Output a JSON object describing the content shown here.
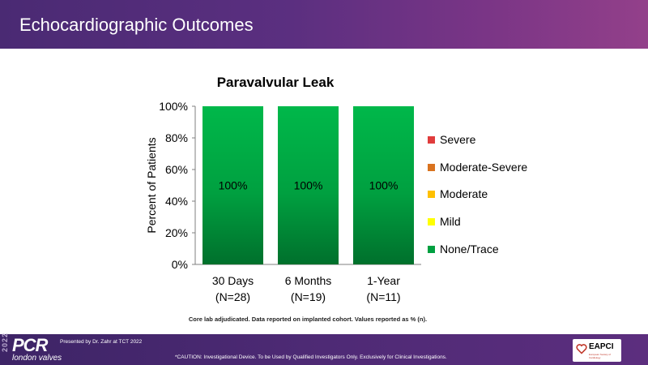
{
  "header": {
    "title": "Echocardiographic Outcomes"
  },
  "chart_data": {
    "type": "bar",
    "stacked": true,
    "title": "Paravalvular Leak",
    "ylabel": "Percent of Patients",
    "ylim": [
      0,
      100
    ],
    "yticks": [
      "0%",
      "20%",
      "40%",
      "60%",
      "80%",
      "100%"
    ],
    "categories": [
      {
        "line1": "30 Days",
        "line2": "(N=28)"
      },
      {
        "line1": "6 Months",
        "line2": "(N=19)"
      },
      {
        "line1": "1-Year",
        "line2": "(N=11)"
      }
    ],
    "series": [
      {
        "name": "None/Trace",
        "color": "#00a040",
        "values": [
          100,
          100,
          100
        ],
        "labels": [
          "100%",
          "100%",
          "100%"
        ]
      },
      {
        "name": "Mild",
        "color": "#ffff00",
        "values": [
          0,
          0,
          0
        ]
      },
      {
        "name": "Moderate",
        "color": "#ffc000",
        "values": [
          0,
          0,
          0
        ]
      },
      {
        "name": "Moderate-Severe",
        "color": "#d9731f",
        "values": [
          0,
          0,
          0
        ]
      },
      {
        "name": "Severe",
        "color": "#e03c3c",
        "values": [
          0,
          0,
          0
        ]
      }
    ],
    "legend": [
      {
        "name": "Severe",
        "color": "#e03c3c"
      },
      {
        "name": "Moderate-Severe",
        "color": "#d9731f"
      },
      {
        "name": "Moderate",
        "color": "#ffc000"
      },
      {
        "name": "Mild",
        "color": "#ffff00"
      },
      {
        "name": "None/Trace",
        "color": "#00a040"
      }
    ],
    "legend_position": "right"
  },
  "footnote": "Core lab adjudicated. Data reported on implanted cohort. Values reported as % (n).",
  "footer": {
    "year": "2022",
    "logo": "PCR",
    "logo_sub": "london valves",
    "presented": "Presented by Dr. Zahr at TCT 2022",
    "caution": "*CAUTION: Investigational Device. To be Used by Qualified Investigators Only. Exclusively for Clinical Investigations.",
    "eapci": "EAPCI",
    "eapci_sub": "European Society of Cardiology"
  }
}
